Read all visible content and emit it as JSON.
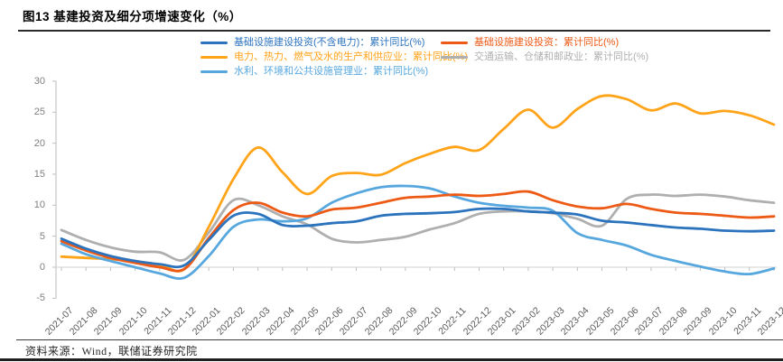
{
  "figure": {
    "title": "图13 基建投资及细分项增速变化（%）",
    "source": "资料来源：Wind，联储证券研究院"
  },
  "axis_colors": {
    "axis_line": "#c6c6c6",
    "zero_line": "#d9d9d9",
    "tick": "#bfbfbf",
    "y_label_color": "#7f7f7f",
    "x_label_color": "#595959"
  },
  "chart_data": {
    "type": "line",
    "title": "图13 基建投资及细分项增速变化（%）",
    "x": [
      "2021-07",
      "2021-08",
      "2021-09",
      "2021-10",
      "2021-11",
      "2021-12",
      "2022-01",
      "2022-02",
      "2022-03",
      "2022-04",
      "2022-05",
      "2022-06",
      "2022-07",
      "2022-08",
      "2022-09",
      "2022-10",
      "2022-11",
      "2022-12",
      "2023-01",
      "2023-02",
      "2023-03",
      "2023-04",
      "2023-05",
      "2023-06",
      "2023-07",
      "2023-08",
      "2023-09",
      "2023-10",
      "2023-11",
      "2023-12"
    ],
    "ylim": [
      -5,
      30
    ],
    "yticks": [
      30,
      25,
      20,
      15,
      10,
      5,
      0,
      -5
    ],
    "grid": "zero-line-only",
    "legend_position": "top-two-columns",
    "series": [
      {
        "name": "基础设施建设投资(不含电力)：累计同比(%)",
        "color": "#2C73BE",
        "legend_column": "left",
        "values": [
          4.6,
          3.0,
          1.8,
          1.0,
          0.5,
          0.3,
          4.4,
          8.3,
          8.6,
          6.8,
          6.7,
          7.1,
          7.4,
          8.3,
          8.6,
          8.7,
          8.9,
          9.4,
          9.4,
          9.0,
          8.8,
          8.5,
          7.5,
          7.2,
          6.8,
          6.4,
          6.2,
          5.9,
          5.8,
          5.9
        ]
      },
      {
        "name": "基础设施建设投资：累计同比(%)",
        "color": "#ED5A16",
        "legend_column": "right",
        "values": [
          4.2,
          2.7,
          1.5,
          0.7,
          0.0,
          -0.3,
          4.7,
          9.2,
          10.4,
          8.8,
          8.2,
          9.3,
          9.6,
          10.4,
          11.2,
          11.4,
          11.7,
          11.5,
          11.8,
          12.2,
          10.8,
          9.8,
          9.5,
          10.2,
          9.4,
          8.8,
          8.6,
          8.3,
          8.0,
          8.2
        ]
      },
      {
        "name": "电力、热力、燃气及水的生产和供应业：累计同比(%)",
        "color": "#FFA319",
        "legend_column": "left",
        "values": [
          1.7,
          1.5,
          1.3,
          1.0,
          0.4,
          -0.3,
          6.5,
          14.2,
          19.3,
          15.3,
          11.8,
          14.7,
          15.2,
          14.9,
          16.8,
          18.3,
          19.4,
          18.9,
          22.3,
          25.4,
          22.5,
          25.5,
          27.6,
          27.1,
          25.3,
          26.4,
          24.8,
          25.2,
          24.5,
          23.0
        ]
      },
      {
        "name": "交通运输、仓储和邮政业：累计同比(%)",
        "color": "#AFAFAF",
        "legend_column": "right",
        "values": [
          6.0,
          4.4,
          3.2,
          2.5,
          2.4,
          1.2,
          5.6,
          10.8,
          10.0,
          8.2,
          6.9,
          4.6,
          4.0,
          4.4,
          4.9,
          6.1,
          7.1,
          8.6,
          9.0,
          9.0,
          8.7,
          7.8,
          6.7,
          11.0,
          11.7,
          11.5,
          11.7,
          11.4,
          10.8,
          10.4
        ]
      },
      {
        "name": "水利、环境和公共设施管理业：累计同比(%)",
        "color": "#57A7DF",
        "legend_column": "left",
        "values": [
          3.8,
          2.1,
          1.0,
          0.0,
          -1.0,
          -1.7,
          1.8,
          6.5,
          7.7,
          7.4,
          7.9,
          10.4,
          11.9,
          12.9,
          13.1,
          12.7,
          11.4,
          10.4,
          9.9,
          9.6,
          9.1,
          5.5,
          4.4,
          3.5,
          2.0,
          1.0,
          0.1,
          -0.7,
          -1.1,
          -0.2
        ]
      }
    ],
    "draw_order": [
      3,
      2,
      4,
      1,
      0
    ]
  }
}
